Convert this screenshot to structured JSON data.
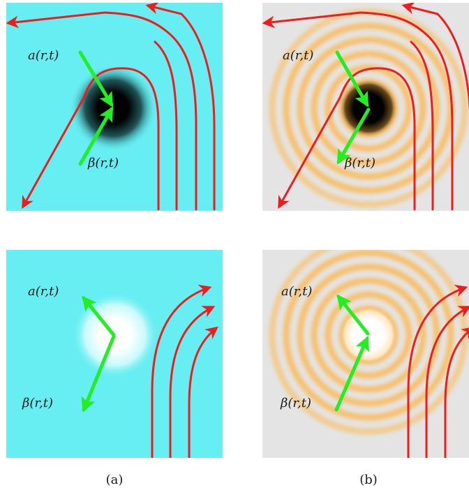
{
  "panels": {
    "a_top": {
      "label_alpha": "a(r,t)",
      "label_beta": "β(r,t)"
    },
    "b_top": {
      "label_alpha": "a(r,t)",
      "label_beta": "β(r,t)"
    },
    "a_bottom": {
      "label_alpha": "a(r,t)",
      "label_beta": "β(r,t)"
    },
    "b_bottom": {
      "label_alpha": "a(r,t)",
      "label_beta": "β(r,t)"
    }
  },
  "captions": {
    "a": "(a)",
    "b": "(b)"
  },
  "colors": {
    "panel_a_background": "#66eef2",
    "panel_b_background": "#e4e4e4",
    "rings": "#f8c06a",
    "flow_lines": "#ee1c1c",
    "spin_arrows": "#22ee22",
    "core_dark": "#000000",
    "core_light": "#ffffff"
  }
}
